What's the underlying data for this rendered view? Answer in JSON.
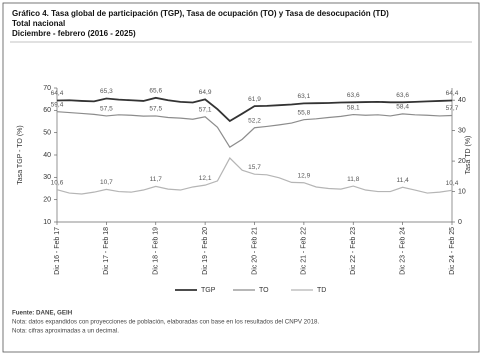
{
  "chart_data": {
    "type": "line",
    "title": "Gráfico 4. Tasa global de participación (TGP), Tasa de ocupación (TO) y Tasa de desocupación (TD)",
    "subtitle": "Total nacional",
    "period": "Diciembre - febrero (2016 - 2025)",
    "ylabel": "Tasa TGP - TO (%)",
    "y2label": "Tasa TD (%)",
    "source": "Fuente: DANE, GEIH",
    "notes": [
      "Nota: datos expandidos con proyecciones de población, elaboradas con base en los resultados del CNPV 2018.",
      "Nota: cifras aproximadas a un decimal."
    ],
    "categories": [
      "Dic 16 - Feb 17",
      null,
      null,
      null,
      "Dic 17 - Feb 18",
      null,
      null,
      null,
      "Dic 18 - Feb 19",
      null,
      null,
      null,
      "Dic 19 - Feb 20",
      null,
      null,
      null,
      "Dic 20 - Feb 21",
      null,
      null,
      null,
      "Dic 21 - Feb 22",
      null,
      null,
      null,
      "Dic 22 - Feb 23",
      null,
      null,
      null,
      "Dic 23 - Feb 24",
      null,
      null,
      null,
      "Dic 24 - Feb 25"
    ],
    "ylim": [
      10,
      70
    ],
    "yticks": [
      10,
      20,
      30,
      40,
      50,
      60,
      70
    ],
    "y2lim": [
      0,
      44
    ],
    "y2ticks": [
      0,
      10,
      20,
      30,
      40
    ],
    "series": [
      {
        "name": "TGP",
        "color": "#333333",
        "width": 1.8,
        "values": [
          64.4,
          64.5,
          64.2,
          64.0,
          65.3,
          64.8,
          64.5,
          64.2,
          65.6,
          64.5,
          63.8,
          63.5,
          64.9,
          60.5,
          55.2,
          58.5,
          61.9,
          62.0,
          62.3,
          62.6,
          63.1,
          63.2,
          63.3,
          63.5,
          63.6,
          63.7,
          63.8,
          63.6,
          63.6,
          63.8,
          64.0,
          64.2,
          64.4
        ],
        "value_labels": [
          "64,4",
          null,
          null,
          null,
          "65,3",
          null,
          null,
          null,
          "65,6",
          null,
          null,
          null,
          "64,9",
          null,
          null,
          null,
          "61,9",
          null,
          null,
          null,
          "63,1",
          null,
          null,
          null,
          "63,6",
          null,
          null,
          null,
          "63,6",
          null,
          null,
          null,
          "64,4"
        ]
      },
      {
        "name": "TO",
        "color": "#8c8c8c",
        "width": 1.2,
        "values": [
          59.4,
          59.0,
          58.6,
          58.2,
          57.5,
          58.0,
          57.8,
          57.4,
          57.5,
          56.8,
          56.5,
          56.0,
          57.1,
          52.4,
          43.5,
          47.0,
          52.2,
          52.8,
          53.5,
          54.3,
          55.8,
          56.2,
          56.8,
          57.3,
          58.1,
          57.8,
          58.0,
          57.5,
          58.4,
          58.0,
          57.8,
          57.5,
          57.7
        ],
        "value_labels": [
          "59,4",
          null,
          null,
          null,
          "57,5",
          null,
          null,
          null,
          "57,5",
          null,
          null,
          null,
          "57,1",
          null,
          null,
          null,
          "52,2",
          null,
          null,
          null,
          "55,8",
          null,
          null,
          null,
          "58,1",
          null,
          null,
          null,
          "58,4",
          null,
          null,
          null,
          "57,7"
        ]
      },
      {
        "name": "TD",
        "color": "#b5b5b5",
        "width": 1.2,
        "axis": "y2",
        "values": [
          10.6,
          9.5,
          9.2,
          9.8,
          10.7,
          10.0,
          9.8,
          10.5,
          11.7,
          10.8,
          10.5,
          11.5,
          12.1,
          13.5,
          21.0,
          17.0,
          15.7,
          15.5,
          14.5,
          13.0,
          12.9,
          11.5,
          11.0,
          10.8,
          11.8,
          10.5,
          10.0,
          10.0,
          11.4,
          10.5,
          9.5,
          9.8,
          10.4
        ],
        "value_labels": [
          "10,6",
          null,
          null,
          null,
          "10,7",
          null,
          null,
          null,
          "11,7",
          null,
          null,
          null,
          "12,1",
          null,
          null,
          null,
          "15,7",
          null,
          null,
          null,
          "12,9",
          null,
          null,
          null,
          "11,8",
          null,
          null,
          null,
          "11,4",
          null,
          null,
          null,
          "10,4"
        ]
      }
    ]
  }
}
